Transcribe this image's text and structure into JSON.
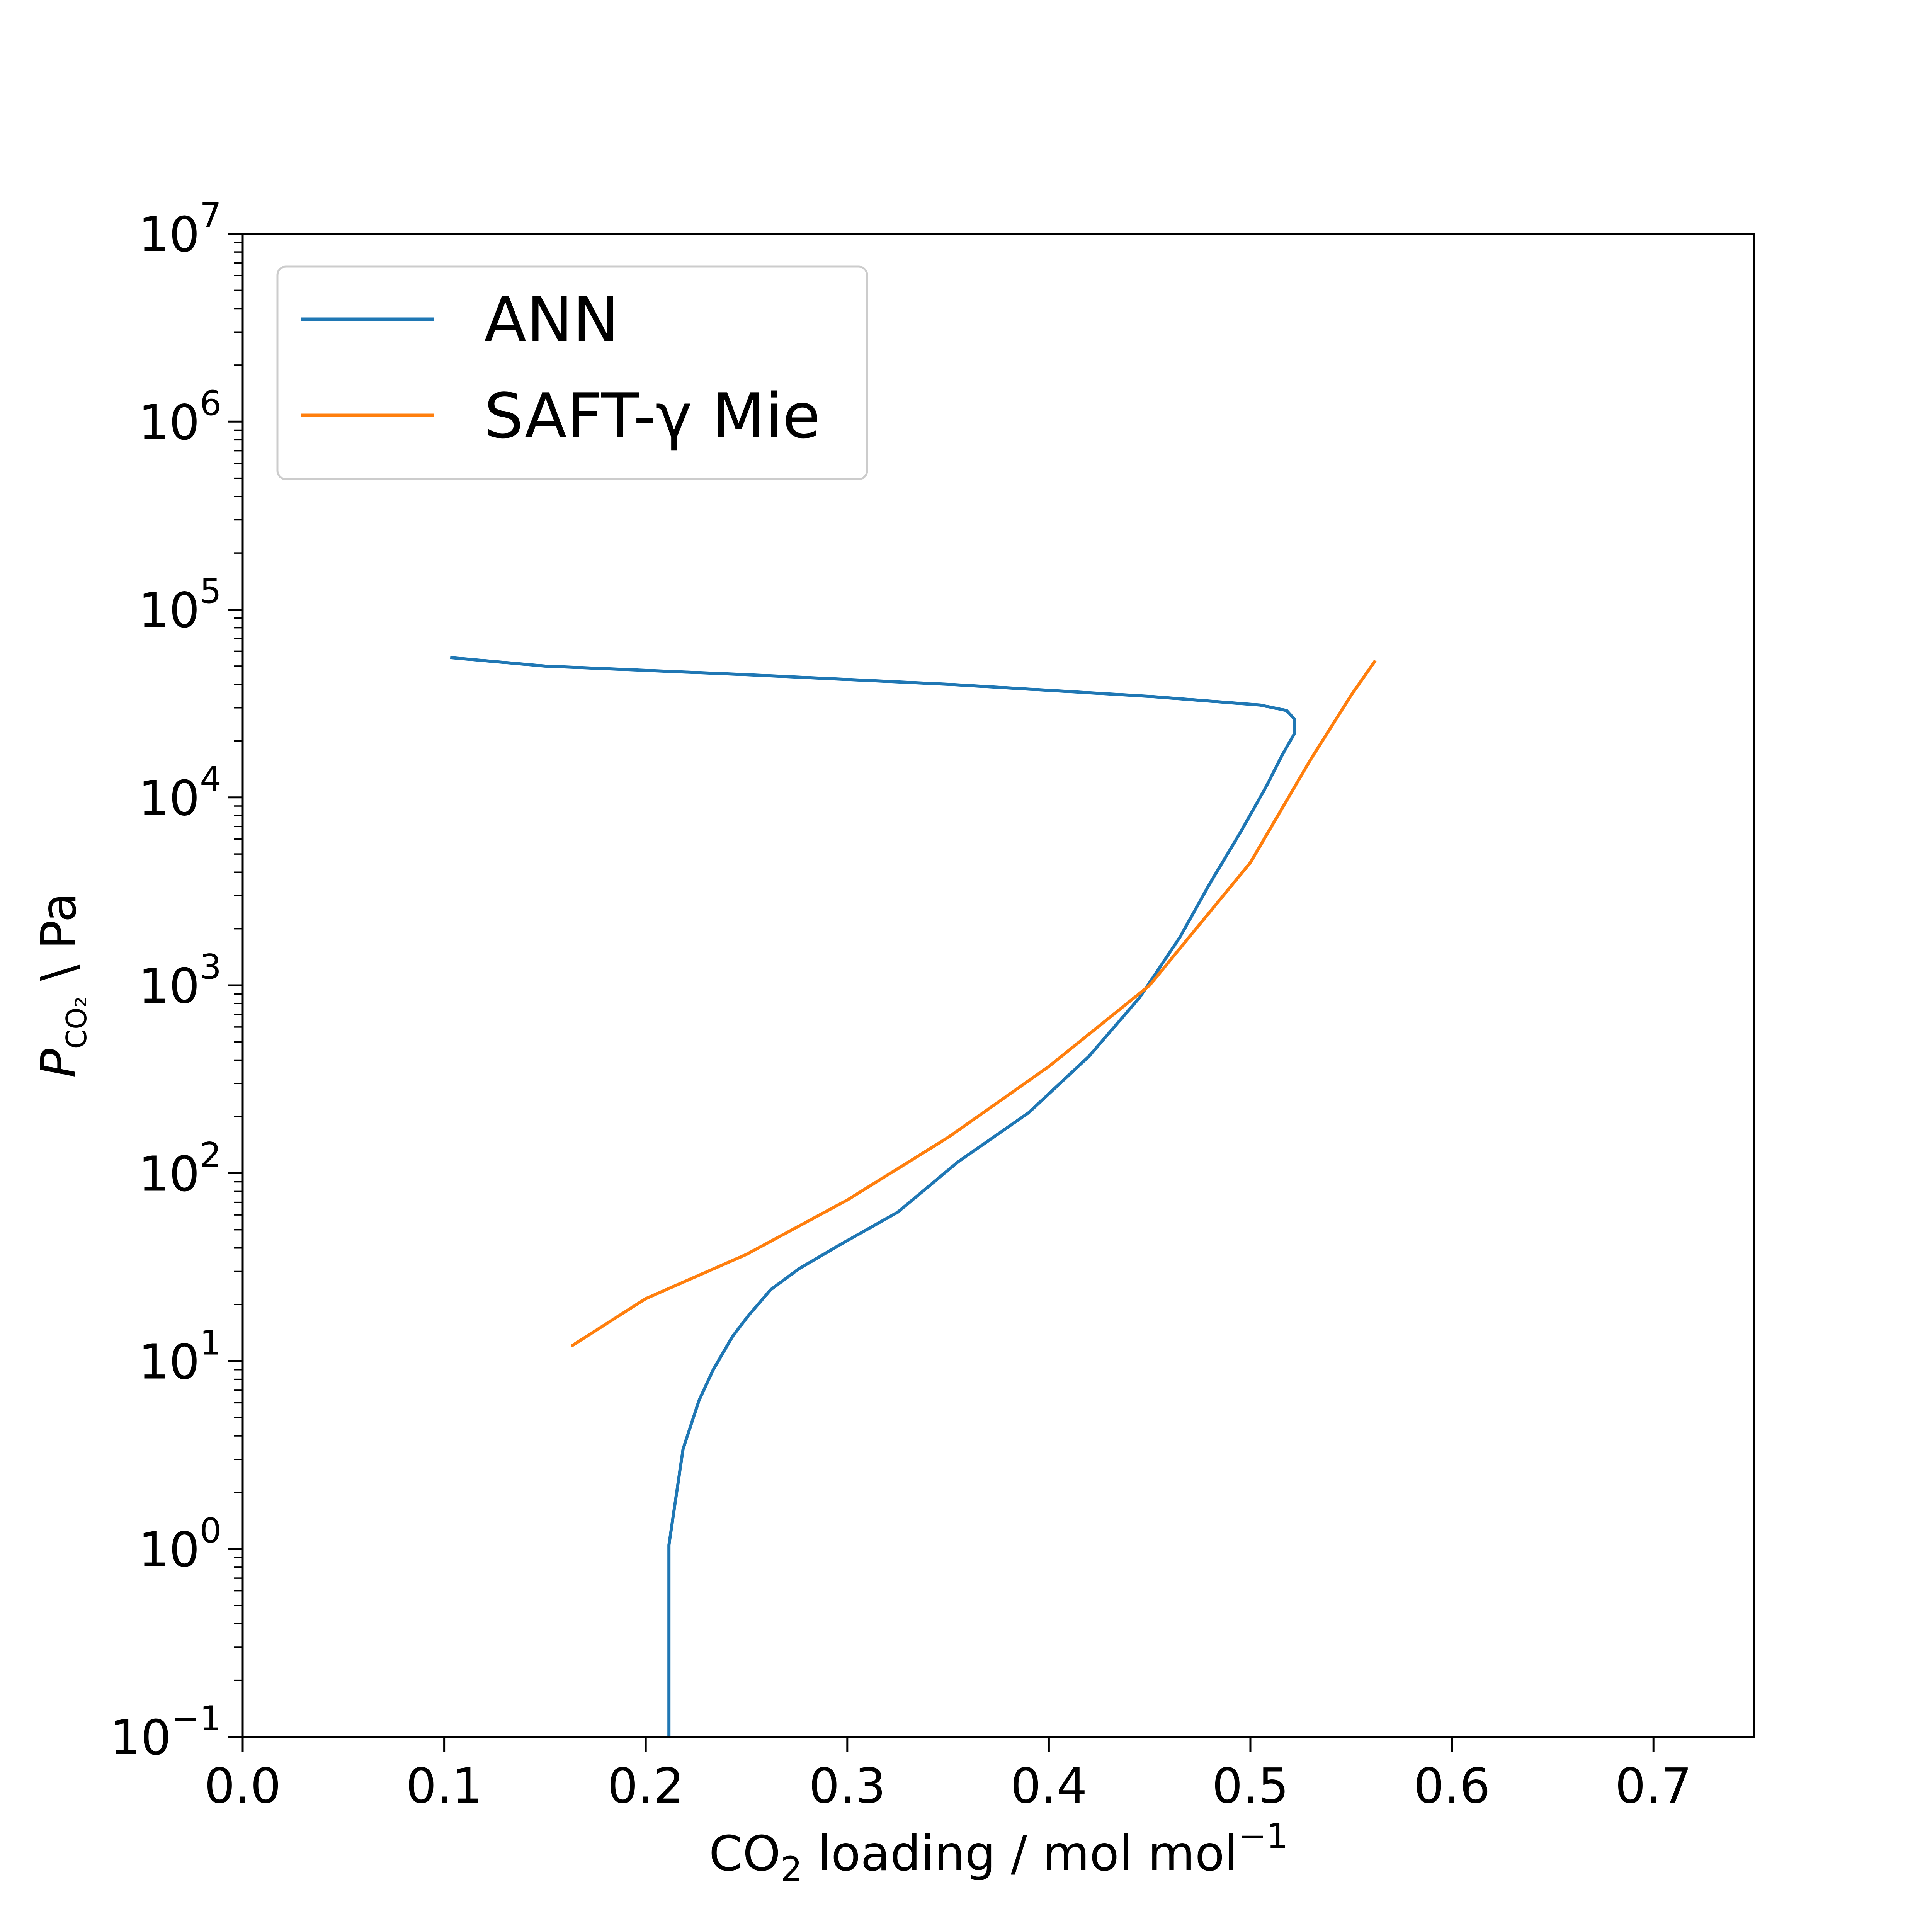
{
  "chart_data": {
    "type": "line",
    "title": "",
    "xlabel": {
      "pre": "CO",
      "sub": "2",
      "mid": " loading / mol mol",
      "sup": "−1"
    },
    "ylabel": {
      "var": "P",
      "sub": "CO₂",
      "rest": " \\ Pa"
    },
    "xlim": [
      0.0,
      0.75
    ],
    "ylim_log10": [
      -1,
      7
    ],
    "yscale": "log",
    "grid": false,
    "legend_position": "top-left",
    "xticks": [
      "0.0",
      "0.1",
      "0.2",
      "0.3",
      "0.4",
      "0.5",
      "0.6",
      "0.7"
    ],
    "yticks": [
      {
        "base": "10",
        "exp": "−1"
      },
      {
        "base": "10",
        "exp": "0"
      },
      {
        "base": "10",
        "exp": "1"
      },
      {
        "base": "10",
        "exp": "2"
      },
      {
        "base": "10",
        "exp": "3"
      },
      {
        "base": "10",
        "exp": "4"
      },
      {
        "base": "10",
        "exp": "5"
      },
      {
        "base": "10",
        "exp": "6"
      },
      {
        "base": "10",
        "exp": "7"
      }
    ],
    "series": [
      {
        "name": "ANN",
        "color": "#1f77b4",
        "x": [
          0.2115,
          0.2115,
          0.2115,
          0.2185,
          0.2265,
          0.2335,
          0.243,
          0.251,
          0.262,
          0.276,
          0.297,
          0.325,
          0.355,
          0.39,
          0.42,
          0.445,
          0.465,
          0.48,
          0.495,
          0.508,
          0.516,
          0.522,
          0.522,
          0.518,
          0.505,
          0.45,
          0.35,
          0.25,
          0.15,
          0.103
        ],
        "y": [
          0.1,
          0.5,
          1.05,
          3.4,
          6.2,
          9.0,
          13.5,
          17.5,
          24.0,
          31.0,
          42.0,
          62.0,
          115.0,
          210.0,
          420.0,
          860.0,
          1800.0,
          3500.0,
          6500.0,
          11500.0,
          17000.0,
          22000.0,
          26000.0,
          29000.0,
          31000.0,
          34500.0,
          40000.0,
          45000.0,
          50000.0,
          55500.0
        ]
      },
      {
        "name": "SAFT-γ Mie",
        "color": "#ff7f0e",
        "x": [
          0.163,
          0.2,
          0.25,
          0.3,
          0.35,
          0.4,
          0.45,
          0.5,
          0.53,
          0.55,
          0.562
        ],
        "y": [
          12.0,
          21.5,
          37.0,
          72.0,
          155.0,
          370.0,
          1000.0,
          4500.0,
          16000.0,
          35000.0,
          53500.0
        ]
      }
    ]
  }
}
